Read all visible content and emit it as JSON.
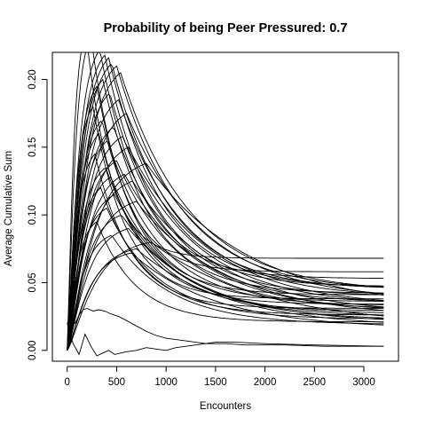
{
  "chart_data": {
    "type": "line",
    "title": "Probability of being Peer Pressured: 0.7",
    "xlabel": "Encounters",
    "ylabel": "Average Cumulative Sum",
    "xlim": [
      -150,
      3350
    ],
    "ylim": [
      -0.008,
      0.22
    ],
    "xticks": [
      0,
      500,
      1000,
      1500,
      2000,
      2500,
      3000
    ],
    "xtick_labels": [
      "0",
      "500",
      "1000",
      "1500",
      "2000",
      "2500",
      "3000"
    ],
    "yticks": [
      0.0,
      0.05,
      0.1,
      0.15,
      0.2
    ],
    "ytick_labels": [
      "0.00",
      "0.05",
      "0.10",
      "0.15",
      "0.20"
    ],
    "grid": false,
    "legend": "none",
    "line_color": "#000000",
    "x_end": 3200,
    "series_shape": "rise-then-decay ~ tail * (1 + (peakRatio-1)*exp(-x/tau)) * (1-exp(-x/r))",
    "series": [
      {
        "peak_x": 190,
        "peak": 0.235,
        "end": 0.068
      },
      {
        "peak_x": 240,
        "peak": 0.232,
        "end": 0.058
      },
      {
        "peak_x": 330,
        "peak": 0.222,
        "end": 0.053
      },
      {
        "peak_x": 380,
        "peak": 0.218,
        "end": 0.047
      },
      {
        "peak_x": 420,
        "peak": 0.216,
        "end": 0.046
      },
      {
        "peak_x": 450,
        "peak": 0.212,
        "end": 0.045
      },
      {
        "peak_x": 500,
        "peak": 0.21,
        "end": 0.044
      },
      {
        "peak_x": 540,
        "peak": 0.205,
        "end": 0.043
      },
      {
        "peak_x": 360,
        "peak": 0.2,
        "end": 0.042
      },
      {
        "peak_x": 300,
        "peak": 0.195,
        "end": 0.041
      },
      {
        "peak_x": 430,
        "peak": 0.19,
        "end": 0.04
      },
      {
        "peak_x": 520,
        "peak": 0.185,
        "end": 0.039
      },
      {
        "peak_x": 260,
        "peak": 0.18,
        "end": 0.038
      },
      {
        "peak_x": 600,
        "peak": 0.175,
        "end": 0.037
      },
      {
        "peak_x": 350,
        "peak": 0.17,
        "end": 0.036
      },
      {
        "peak_x": 470,
        "peak": 0.165,
        "end": 0.035
      },
      {
        "peak_x": 320,
        "peak": 0.16,
        "end": 0.034
      },
      {
        "peak_x": 560,
        "peak": 0.158,
        "end": 0.033
      },
      {
        "peak_x": 410,
        "peak": 0.155,
        "end": 0.033
      },
      {
        "peak_x": 620,
        "peak": 0.15,
        "end": 0.032
      },
      {
        "peak_x": 280,
        "peak": 0.145,
        "end": 0.031
      },
      {
        "peak_x": 500,
        "peak": 0.14,
        "end": 0.03
      },
      {
        "peak_x": 800,
        "peak": 0.138,
        "end": 0.03
      },
      {
        "peak_x": 390,
        "peak": 0.135,
        "end": 0.029
      },
      {
        "peak_x": 580,
        "peak": 0.13,
        "end": 0.028
      },
      {
        "peak_x": 440,
        "peak": 0.128,
        "end": 0.027
      },
      {
        "peak_x": 660,
        "peak": 0.125,
        "end": 0.027
      },
      {
        "peak_x": 340,
        "peak": 0.12,
        "end": 0.026
      },
      {
        "peak_x": 480,
        "peak": 0.115,
        "end": 0.025
      },
      {
        "peak_x": 700,
        "peak": 0.11,
        "end": 0.024
      },
      {
        "peak_x": 400,
        "peak": 0.105,
        "end": 0.023
      },
      {
        "peak_x": 550,
        "peak": 0.1,
        "end": 0.022
      },
      {
        "peak_x": 300,
        "peak": 0.095,
        "end": 0.021
      },
      {
        "peak_x": 620,
        "peak": 0.09,
        "end": 0.02
      },
      {
        "peak_x": 450,
        "peak": 0.085,
        "end": 0.019
      },
      {
        "peak_x": 850,
        "peak": 0.08,
        "end": 0.018
      },
      {
        "peak_x": 700,
        "peak": 0.075,
        "end": 0.017
      },
      {
        "peak_x": 650,
        "peak": 0.072,
        "end": 0.016
      }
    ],
    "polylines": [
      {
        "name": "low-wiggle",
        "x": [
          0,
          40,
          80,
          120,
          160,
          200,
          260,
          320,
          380,
          440,
          520,
          600,
          700,
          800,
          900,
          1000,
          1200,
          1400,
          1600,
          1800,
          2200,
          2600,
          3200
        ],
        "y": [
          0.02,
          0.025,
          0.02,
          0.026,
          0.03,
          0.031,
          0.029,
          0.03,
          0.029,
          0.027,
          0.025,
          0.022,
          0.018,
          0.014,
          0.011,
          0.009,
          0.007,
          0.005,
          0.005,
          0.004,
          0.004,
          0.003,
          0.003
        ]
      },
      {
        "name": "near-zero",
        "x": [
          0,
          60,
          120,
          180,
          240,
          300,
          360,
          420,
          480,
          540,
          600,
          700,
          800,
          900,
          1000,
          1100,
          1300,
          1500,
          1700,
          2000,
          2500,
          3200
        ],
        "y": [
          0.02,
          0.005,
          -0.003,
          0.012,
          0.003,
          -0.004,
          -0.002,
          0.0,
          -0.003,
          -0.002,
          -0.001,
          0.0,
          0.002,
          0.001,
          0.0,
          0.002,
          0.004,
          0.006,
          0.006,
          0.005,
          0.004,
          0.003
        ]
      }
    ]
  }
}
